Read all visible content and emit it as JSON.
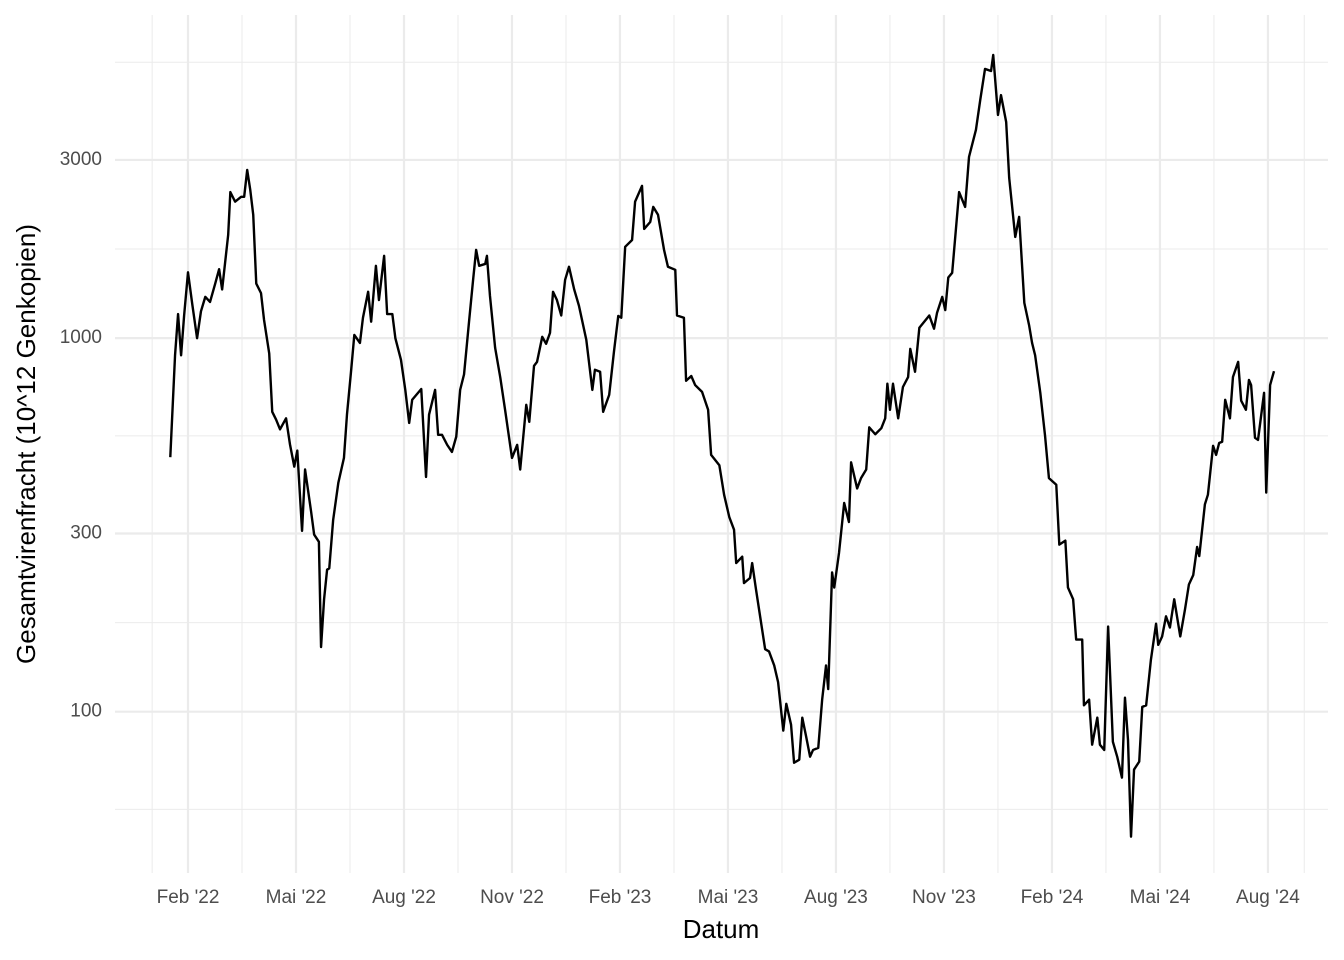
{
  "chart_data": {
    "type": "line",
    "x_label": "Datum",
    "y_label": "Gesamtvirenfracht (10^12 Genkopien)",
    "color": "#000000",
    "yscale": "log",
    "grid": true,
    "xlim": [
      2021.914,
      2024.722
    ],
    "ylim": [
      37,
      7330
    ],
    "xticks": [
      {
        "value": 2022.083,
        "label": "Feb '22"
      },
      {
        "value": 2022.333,
        "label": "Mai '22"
      },
      {
        "value": 2022.583,
        "label": "Aug '22"
      },
      {
        "value": 2022.833,
        "label": "Nov '22"
      },
      {
        "value": 2023.083,
        "label": "Feb '23"
      },
      {
        "value": 2023.333,
        "label": "Mai '23"
      },
      {
        "value": 2023.583,
        "label": "Aug '23"
      },
      {
        "value": 2023.833,
        "label": "Nov '23"
      },
      {
        "value": 2024.083,
        "label": "Feb '24"
      },
      {
        "value": 2024.333,
        "label": "Mai '24"
      },
      {
        "value": 2024.583,
        "label": "Aug '24"
      }
    ],
    "xminor": [
      2022.0,
      2022.208,
      2022.458,
      2022.708,
      2022.958,
      2023.208,
      2023.458,
      2023.708,
      2023.958,
      2024.208,
      2024.458,
      2024.667
    ],
    "yticks": [
      100,
      300,
      1000,
      3000
    ],
    "yminor": [
      54.77,
      173.2,
      547.7,
      1732,
      5477
    ],
    "x": [
      2022.042,
      2022.053,
      2022.06,
      2022.067,
      2022.074,
      2022.083,
      2022.093,
      2022.104,
      2022.113,
      2022.123,
      2022.134,
      2022.146,
      2022.155,
      2022.162,
      2022.176,
      2022.181,
      2022.192,
      2022.206,
      2022.213,
      2022.22,
      2022.227,
      2022.234,
      2022.241,
      2022.252,
      2022.259,
      2022.271,
      2022.278,
      2022.287,
      2022.296,
      2022.31,
      2022.319,
      2022.329,
      2022.336,
      2022.347,
      2022.354,
      2022.368,
      2022.375,
      2022.386,
      2022.391,
      2022.398,
      2022.405,
      2022.41,
      2022.419,
      2022.431,
      2022.444,
      2022.451,
      2022.461,
      2022.468,
      2022.481,
      2022.488,
      2022.5,
      2022.507,
      2022.518,
      2022.525,
      2022.537,
      2022.544,
      2022.556,
      2022.563,
      2022.576,
      2022.586,
      2022.595,
      2022.602,
      2022.623,
      2022.634,
      2022.641,
      2022.655,
      2022.662,
      2022.671,
      2022.683,
      2022.694,
      2022.704,
      2022.713,
      2022.722,
      2022.734,
      2022.743,
      2022.75,
      2022.757,
      2022.771,
      2022.775,
      2022.782,
      2022.794,
      2022.806,
      2022.817,
      2022.833,
      2022.845,
      2022.852,
      2022.866,
      2022.873,
      2022.884,
      2022.891,
      2022.903,
      2022.912,
      2022.921,
      2022.928,
      2022.937,
      2022.947,
      2022.956,
      2022.965,
      2022.977,
      2022.988,
      2023.005,
      2023.019,
      2023.025,
      2023.037,
      2023.044,
      2023.058,
      2023.069,
      2023.079,
      2023.086,
      2023.095,
      2023.111,
      2023.118,
      2023.134,
      2023.139,
      2023.153,
      2023.16,
      2023.171,
      2023.185,
      2023.194,
      2023.211,
      2023.215,
      2023.231,
      2023.236,
      2023.248,
      2023.257,
      2023.273,
      2023.287,
      2023.294,
      2023.313,
      2023.324,
      2023.336,
      2023.347,
      2023.352,
      2023.366,
      2023.37,
      2023.384,
      2023.389,
      2023.398,
      2023.419,
      2023.428,
      2023.44,
      2023.449,
      2023.461,
      2023.468,
      2023.479,
      2023.486,
      2023.498,
      2023.505,
      2023.514,
      2023.523,
      2023.53,
      2023.542,
      2023.551,
      2023.56,
      2023.565,
      2023.574,
      2023.579,
      2023.59,
      2023.602,
      2023.613,
      2023.618,
      2023.632,
      2023.641,
      2023.653,
      2023.66,
      2023.674,
      2023.688,
      2023.697,
      2023.702,
      2023.708,
      2023.715,
      2023.727,
      2023.738,
      2023.75,
      2023.755,
      2023.766,
      2023.776,
      2023.799,
      2023.81,
      2023.817,
      2023.829,
      2023.836,
      2023.843,
      2023.852,
      2023.868,
      2023.882,
      2023.891,
      2023.907,
      2023.917,
      2023.928,
      2023.942,
      2023.947,
      2023.958,
      2023.965,
      2023.977,
      2023.984,
      2023.998,
      2024.007,
      2024.019,
      2024.03,
      2024.037,
      2024.044,
      2024.056,
      2024.067,
      2024.076,
      2024.093,
      2024.1,
      2024.114,
      2024.12,
      2024.132,
      2024.139,
      2024.153,
      2024.157,
      2024.169,
      2024.176,
      2024.188,
      2024.194,
      2024.204,
      2024.213,
      2024.224,
      2024.234,
      2024.245,
      2024.252,
      2024.259,
      2024.266,
      2024.273,
      2024.285,
      2024.292,
      2024.301,
      2024.312,
      2024.324,
      2024.329,
      2024.338,
      2024.347,
      2024.356,
      2024.366,
      2024.38,
      2024.391,
      2024.4,
      2024.41,
      2024.419,
      2024.424,
      2024.437,
      2024.444,
      2024.456,
      2024.463,
      2024.47,
      2024.477,
      2024.484,
      2024.495,
      2024.502,
      2024.514,
      2024.521,
      2024.532,
      2024.539,
      2024.544,
      2024.553,
      2024.56,
      2024.574,
      2024.579,
      2024.588,
      2024.597
    ],
    "values": [
      480,
      900,
      1160,
      900,
      1150,
      1500,
      1230,
      1000,
      1180,
      1290,
      1250,
      1400,
      1530,
      1350,
      1890,
      2460,
      2320,
      2390,
      2390,
      2820,
      2500,
      2140,
      1400,
      1320,
      1120,
      910,
      635,
      605,
      570,
      610,
      520,
      453,
      500,
      305,
      445,
      343,
      298,
      285,
      149,
      200,
      240,
      242,
      326,
      410,
      478,
      624,
      828,
      1020,
      971,
      1134,
      1331,
      1107,
      1562,
      1265,
      1661,
      1160,
      1160,
      1000,
      875,
      727,
      593,
      684,
      731,
      425,
      624,
      727,
      551,
      551,
      518,
      496,
      545,
      727,
      800,
      1120,
      1433,
      1723,
      1562,
      1580,
      1661,
      1299,
      942,
      783,
      643,
      478,
      518,
      445,
      663,
      597,
      843,
      864,
      1008,
      966,
      1033,
      1331,
      1265,
      1150,
      1433,
      1553,
      1350,
      1221,
      990,
      727,
      823,
      813,
      635,
      705,
      919,
      1147,
      1134,
      1756,
      1831,
      2320,
      2556,
      1961,
      2046,
      2246,
      2140,
      1723,
      1553,
      1524,
      1150,
      1134,
      769,
      792,
      749,
      718,
      643,
      487,
      457,
      381,
      332,
      307,
      250,
      260,
      221,
      228,
      250,
      212,
      147,
      145,
      133,
      120,
      89,
      105,
      92.3,
      73,
      74.4,
      96.4,
      85.7,
      75.8,
      79,
      80,
      107.7,
      133,
      115,
      236,
      215,
      266,
      362,
      322,
      465,
      396,
      422,
      445,
      577,
      553,
      574,
      610,
      755,
      643,
      755,
      610,
      740,
      787,
      936,
      813,
      1066,
      1150,
      1060,
      1170,
      1290,
      1189,
      1453,
      1496,
      2460,
      2246,
      3057,
      3612,
      4345,
      5257,
      5190,
      5729,
      3960,
      4473,
      3790,
      2683,
      1866,
      2112,
      1243,
      1084,
      971,
      900,
      714,
      548,
      422,
      405,
      280,
      287,
      215,
      200,
      156,
      156,
      104,
      107.7,
      81.6,
      96.4,
      81.6,
      79,
      169,
      83.1,
      75.8,
      66.6,
      109,
      84.1,
      46.3,
      70,
      73.5,
      103,
      104,
      137.6,
      172,
      151,
      159,
      180,
      168,
      200,
      159,
      188,
      219,
      232,
      276,
      261,
      359,
      381,
      515,
      487,
      524,
      528,
      684,
      610,
      787,
      864,
      680,
      643,
      773,
      749,
      541,
      534,
      714,
      386,
      749,
      816
    ]
  }
}
